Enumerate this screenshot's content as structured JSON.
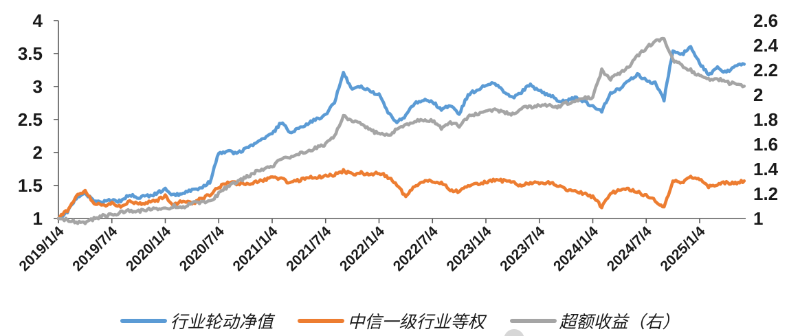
{
  "chart_data": {
    "type": "line",
    "title": "",
    "grid": false,
    "legend_position": "bottom",
    "x_tick_labels": [
      "2019/1/4",
      "2019/7/4",
      "2020/1/4",
      "2020/7/4",
      "2021/1/4",
      "2021/7/4",
      "2022/1/4",
      "2022/7/4",
      "2023/1/4",
      "2023/7/4",
      "2024/1/4",
      "2024/7/4",
      "2025/1/4"
    ],
    "left_axis": {
      "min": 1,
      "max": 4,
      "ticks": [
        "1",
        "1.5",
        "2",
        "2.5",
        "3",
        "3.5",
        "4"
      ],
      "tick_values": [
        1,
        1.5,
        2,
        2.5,
        3,
        3.5,
        4
      ]
    },
    "right_axis": {
      "min": 1,
      "max": 2.6,
      "ticks": [
        "1",
        "1.2",
        "1.4",
        "1.6",
        "1.8",
        "2",
        "2.2",
        "2.4",
        "2.6"
      ],
      "tick_values": [
        1,
        1.2,
        1.4,
        1.6,
        1.8,
        2,
        2.2,
        2.4,
        2.6
      ]
    },
    "x": [
      "2019-01",
      "2019-02",
      "2019-03",
      "2019-04",
      "2019-05",
      "2019-06",
      "2019-07",
      "2019-08",
      "2019-09",
      "2019-10",
      "2019-11",
      "2019-12",
      "2020-01",
      "2020-02",
      "2020-03",
      "2020-04",
      "2020-05",
      "2020-06",
      "2020-07",
      "2020-08",
      "2020-09",
      "2020-10",
      "2020-11",
      "2020-12",
      "2021-01",
      "2021-02",
      "2021-03",
      "2021-04",
      "2021-05",
      "2021-06",
      "2021-07",
      "2021-08",
      "2021-09",
      "2021-10",
      "2021-11",
      "2021-12",
      "2022-01",
      "2022-02",
      "2022-03",
      "2022-04",
      "2022-05",
      "2022-06",
      "2022-07",
      "2022-08",
      "2022-09",
      "2022-10",
      "2022-11",
      "2022-12",
      "2023-01",
      "2023-02",
      "2023-03",
      "2023-04",
      "2023-05",
      "2023-06",
      "2023-07",
      "2023-08",
      "2023-09",
      "2023-10",
      "2023-11",
      "2023-12",
      "2024-01",
      "2024-02",
      "2024-03",
      "2024-04",
      "2024-05",
      "2024-06",
      "2024-07",
      "2024-08",
      "2024-09",
      "2024-10",
      "2024-11",
      "2024-12",
      "2025-01",
      "2025-02",
      "2025-03",
      "2025-04",
      "2025-05",
      "2025-06"
    ],
    "series": [
      {
        "key": "strategy-nav",
        "name": "行业轮动净值",
        "axis": "left",
        "color": "#5B9BD5",
        "values": [
          1.0,
          1.1,
          1.3,
          1.38,
          1.27,
          1.25,
          1.28,
          1.26,
          1.36,
          1.32,
          1.34,
          1.38,
          1.44,
          1.35,
          1.39,
          1.42,
          1.47,
          1.55,
          2.0,
          2.02,
          1.98,
          2.05,
          2.12,
          2.2,
          2.28,
          2.46,
          2.31,
          2.37,
          2.44,
          2.51,
          2.57,
          2.76,
          3.22,
          2.95,
          3.01,
          2.92,
          2.89,
          2.62,
          2.45,
          2.56,
          2.75,
          2.8,
          2.78,
          2.65,
          2.72,
          2.58,
          2.88,
          2.95,
          3.02,
          3.05,
          2.93,
          2.83,
          2.92,
          3.03,
          2.93,
          2.88,
          2.8,
          2.78,
          2.83,
          2.78,
          2.7,
          2.63,
          2.9,
          2.97,
          3.08,
          3.18,
          3.1,
          3.05,
          2.8,
          3.55,
          3.48,
          3.6,
          3.35,
          3.18,
          3.28,
          3.22,
          3.3,
          3.34
        ]
      },
      {
        "key": "citic-industry-equal-weight",
        "name": "中信一级行业等权",
        "axis": "left",
        "color": "#ED7D31",
        "values": [
          1.0,
          1.12,
          1.33,
          1.42,
          1.24,
          1.2,
          1.23,
          1.18,
          1.26,
          1.22,
          1.24,
          1.27,
          1.34,
          1.2,
          1.28,
          1.22,
          1.3,
          1.36,
          1.47,
          1.55,
          1.53,
          1.52,
          1.55,
          1.58,
          1.62,
          1.6,
          1.54,
          1.58,
          1.61,
          1.63,
          1.64,
          1.66,
          1.72,
          1.67,
          1.69,
          1.66,
          1.7,
          1.62,
          1.52,
          1.32,
          1.5,
          1.55,
          1.57,
          1.53,
          1.44,
          1.4,
          1.5,
          1.53,
          1.55,
          1.58,
          1.57,
          1.56,
          1.49,
          1.55,
          1.53,
          1.55,
          1.5,
          1.44,
          1.41,
          1.38,
          1.33,
          1.18,
          1.39,
          1.42,
          1.45,
          1.41,
          1.34,
          1.27,
          1.16,
          1.58,
          1.54,
          1.62,
          1.6,
          1.48,
          1.52,
          1.54,
          1.53,
          1.57
        ]
      },
      {
        "key": "excess-return",
        "name": "超额收益（右）",
        "axis": "right",
        "color": "#A5A5A5",
        "values": [
          1.0,
          0.99,
          0.97,
          0.97,
          1.0,
          1.02,
          1.03,
          1.05,
          1.06,
          1.06,
          1.07,
          1.08,
          1.08,
          1.1,
          1.09,
          1.13,
          1.13,
          1.14,
          1.2,
          1.26,
          1.29,
          1.33,
          1.37,
          1.4,
          1.42,
          1.48,
          1.49,
          1.52,
          1.55,
          1.57,
          1.6,
          1.66,
          1.83,
          1.78,
          1.77,
          1.72,
          1.68,
          1.67,
          1.72,
          1.76,
          1.78,
          1.8,
          1.79,
          1.73,
          1.77,
          1.75,
          1.82,
          1.85,
          1.86,
          1.88,
          1.86,
          1.84,
          1.89,
          1.9,
          1.91,
          1.92,
          1.9,
          1.93,
          1.95,
          1.97,
          1.98,
          2.2,
          2.13,
          2.17,
          2.22,
          2.31,
          2.38,
          2.43,
          2.46,
          2.28,
          2.24,
          2.2,
          2.15,
          2.12,
          2.13,
          2.1,
          2.09,
          2.07
        ]
      }
    ],
    "colors": {
      "axis_line": "#595959",
      "tick_text": "#1a1a1a",
      "background": "#ffffff"
    }
  }
}
